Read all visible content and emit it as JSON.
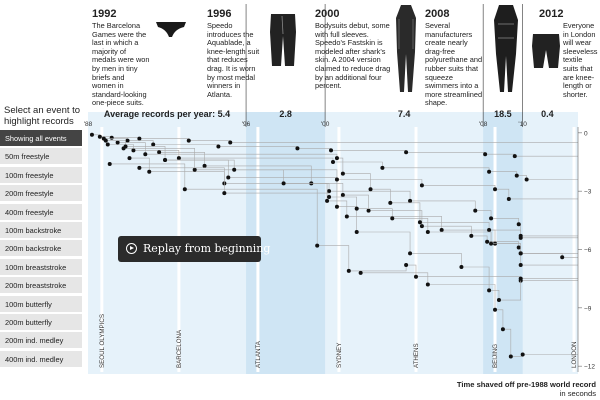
{
  "eras": [
    {
      "year": "1992",
      "text": "The Barcelona Games were the last in which a majority of medals were won by men in tiny briefs and women in standard-looking one-piece suits.",
      "suit": "brief-icon"
    },
    {
      "year": "1996",
      "text": "Speedo introduces the Aquablade, a knee-length suit that reduces drag. It is worn by most medal winners in Atlanta.",
      "suit": "kneeskin-icon"
    },
    {
      "year": "2000",
      "text": "Bodysuits debut, some with full sleeves. Speedo's Fastskin is modeled after shark's skin. A 2004 version claimed to reduce drag by an additional four percent.",
      "suit": "bodysuit-icon"
    },
    {
      "year": "2008",
      "text": "Several manufacturers create nearly drag-free polyurethane and rubber suits that squeeze swimmers into a more streamlined shape.",
      "suit": "lzr-suit-icon"
    },
    {
      "year": "2012",
      "text": "Everyone in London will wear sleeveless textile suits that are knee-length or shorter.",
      "suit": "textile-suit-icon"
    }
  ],
  "sidebar": {
    "title": "Select an event to highlight records",
    "items": [
      "Showing all events",
      "50m freestyle",
      "100m freestyle",
      "200m freestyle",
      "400m freestyle",
      "100m backstroke",
      "200m backstroke",
      "100m breaststroke",
      "200m breaststroke",
      "100m butterfly",
      "200m butterfly",
      "200m ind. medley",
      "400m ind. medley"
    ]
  },
  "replay": {
    "label": "Replay from beginning"
  },
  "y_units": {
    "title": "Time shaved off pre-1988 world record",
    "unit": "in seconds"
  },
  "chart_data": {
    "type": "scatter",
    "title": "Average records per year",
    "rate_periods": [
      {
        "from": 1988,
        "to": 1996,
        "value": "5.4",
        "label_prefix": "Average records per year: "
      },
      {
        "from": 1996,
        "to": 2000,
        "value": "2.8"
      },
      {
        "from": 2000,
        "to": 2008,
        "value": "7.4"
      },
      {
        "from": 2008,
        "to": 2010,
        "value": "18.5"
      },
      {
        "from": 2010,
        "to": 2012.5,
        "value": "0.4"
      }
    ],
    "x_ticks": [
      {
        "v": 1988,
        "t": "'88"
      },
      {
        "v": 1996,
        "t": "'96"
      },
      {
        "v": 2000,
        "t": "'00"
      },
      {
        "v": 2008,
        "t": "'08"
      },
      {
        "v": 2010,
        "t": "'10"
      }
    ],
    "y_ticks": [
      0,
      -3,
      -6,
      -9,
      -12
    ],
    "xlim": [
      1988,
      2012.8
    ],
    "ylim": [
      -12.3,
      0.3
    ],
    "shaded_eras": [
      [
        1996,
        2000
      ],
      [
        2008,
        2010
      ]
    ],
    "olympics": [
      {
        "year": 1988.7,
        "name": "SEOUL OLYMPICS"
      },
      {
        "year": 1992.6,
        "name": "BARCELONA"
      },
      {
        "year": 1996.6,
        "name": "ATLANTA"
      },
      {
        "year": 2000.7,
        "name": "SYDNEY"
      },
      {
        "year": 2004.6,
        "name": "ATHENS"
      },
      {
        "year": 2008.6,
        "name": "BEIJING"
      },
      {
        "year": 2012.6,
        "name": "LONDON"
      }
    ],
    "series": [
      {
        "points": [
          [
            1988.2,
            -0.1
          ],
          [
            1988.6,
            -0.2
          ],
          [
            1989.2,
            -0.25
          ],
          [
            1990.6,
            -0.3
          ],
          [
            1993.1,
            -0.4
          ],
          [
            1995.2,
            -0.5
          ]
        ]
      },
      {
        "points": [
          [
            1988.8,
            -0.3
          ],
          [
            1990.0,
            -0.4
          ],
          [
            1991.3,
            -0.6
          ],
          [
            1994.6,
            -0.7
          ],
          [
            1998.6,
            -0.8
          ],
          [
            2000.3,
            -0.9
          ],
          [
            2004.1,
            -1.0
          ],
          [
            2008.1,
            -1.1
          ],
          [
            2009.6,
            -1.2
          ]
        ]
      },
      {
        "points": [
          [
            1989.0,
            -0.6
          ],
          [
            1990.3,
            -0.9
          ],
          [
            1992.6,
            -1.3
          ],
          [
            2000.4,
            -1.5
          ],
          [
            2002.9,
            -1.8
          ],
          [
            2008.3,
            -2.0
          ],
          [
            2009.7,
            -2.2
          ],
          [
            2010.2,
            -2.4
          ]
        ]
      },
      {
        "points": [
          [
            1990.1,
            -1.3
          ],
          [
            1991.1,
            -2.0
          ],
          [
            1994.9,
            -2.6
          ],
          [
            2000.2,
            -3.0
          ],
          [
            2004.3,
            -3.5
          ],
          [
            2007.6,
            -4.0
          ],
          [
            2008.4,
            -4.4
          ],
          [
            2009.8,
            -4.7
          ],
          [
            2009.9,
            -5.4
          ]
        ]
      },
      {
        "points": [
          [
            1991.6,
            -1.0
          ],
          [
            1993.9,
            -1.7
          ],
          [
            1999.3,
            -2.6
          ],
          [
            2000.9,
            -3.2
          ],
          [
            2002.2,
            -4.0
          ],
          [
            2004.9,
            -4.8
          ],
          [
            2007.4,
            -5.3
          ],
          [
            2008.2,
            -5.6
          ],
          [
            2009.8,
            -5.9
          ],
          [
            2009.9,
            -6.2
          ],
          [
            2012.0,
            -6.4
          ]
        ]
      },
      {
        "points": [
          [
            1989.8,
            -0.8
          ],
          [
            1993.4,
            -1.9
          ],
          [
            1997.9,
            -2.6
          ],
          [
            2000.1,
            -3.5
          ],
          [
            2001.1,
            -4.3
          ],
          [
            2005.9,
            -5.0
          ],
          [
            2008.6,
            -5.7
          ],
          [
            2009.9,
            -6.8
          ]
        ]
      },
      {
        "points": [
          [
            1989.1,
            -1.6
          ],
          [
            1992.9,
            -2.9
          ],
          [
            1999.6,
            -5.8
          ],
          [
            2001.2,
            -7.1
          ],
          [
            2004.1,
            -6.8
          ],
          [
            2004.6,
            -7.4
          ],
          [
            2009.9,
            -7.6
          ]
        ]
      },
      {
        "points": [
          [
            1991.9,
            -1.4
          ],
          [
            1995.1,
            -2.3
          ],
          [
            2000.6,
            -3.8
          ],
          [
            2001.6,
            -5.1
          ],
          [
            2004.3,
            -6.2
          ],
          [
            2006.9,
            -6.9
          ],
          [
            2008.3,
            -8.1
          ],
          [
            2008.8,
            -8.6
          ],
          [
            2009.9,
            -7.5
          ]
        ]
      },
      {
        "points": [
          [
            1989.5,
            -0.5
          ],
          [
            1990.9,
            -1.1
          ],
          [
            2000.6,
            -1.3
          ],
          [
            2000.9,
            -2.1
          ],
          [
            2002.3,
            -2.9
          ],
          [
            2003.3,
            -3.6
          ],
          [
            2004.8,
            -4.6
          ],
          [
            2008.3,
            -5.0
          ],
          [
            2009.9,
            -5.3
          ]
        ]
      },
      {
        "points": [
          [
            1988.9,
            -0.4
          ],
          [
            1989.9,
            -0.7
          ],
          [
            1991.9,
            -1.4
          ],
          [
            1995.4,
            -1.9
          ],
          [
            2000.6,
            -2.4
          ],
          [
            2004.9,
            -2.7
          ],
          [
            2008.6,
            -2.9
          ],
          [
            2009.3,
            -3.4
          ]
        ]
      },
      {
        "points": [
          [
            1990.6,
            -1.8
          ],
          [
            1994.9,
            -3.1
          ],
          [
            2000.2,
            -3.3
          ],
          [
            2001.6,
            -3.9
          ],
          [
            2003.4,
            -4.4
          ],
          [
            2005.2,
            -5.1
          ],
          [
            2008.4,
            -5.7
          ],
          [
            2009.9,
            -6.2
          ]
        ]
      },
      {
        "points": [
          [
            2001.8,
            -7.2
          ],
          [
            2005.2,
            -7.8
          ],
          [
            2008.6,
            -9.1
          ],
          [
            2009.0,
            -10.1
          ],
          [
            2009.4,
            -11.5
          ],
          [
            2010.0,
            -11.4
          ]
        ]
      }
    ]
  }
}
